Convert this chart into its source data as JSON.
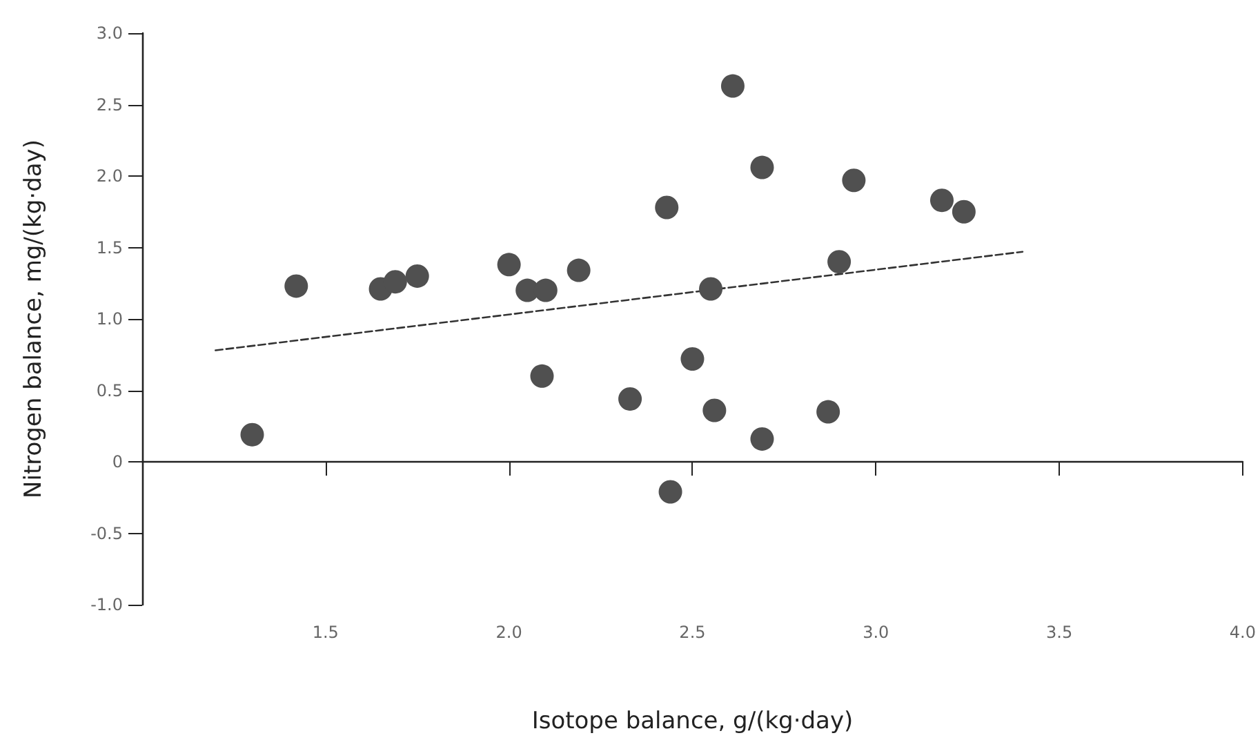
{
  "chart_data": {
    "type": "scatter",
    "xlabel": "Isotope balance, g/(kg·day)",
    "ylabel": "Nitrogen balance, mg/(kg·day)",
    "xlim": [
      1.0,
      4.0
    ],
    "xticks": [
      1.5,
      {
        "value": 2,
        "label": "2.0"
      },
      2.5,
      {
        "value": 3,
        "label": "3.0"
      },
      3.5,
      {
        "value": 4,
        "label": "4.0"
      }
    ],
    "ylim": [
      -1.0,
      3.0
    ],
    "yticks": [
      {
        "value": -1,
        "label": "-1.0"
      },
      -0.5,
      0,
      0.5,
      {
        "value": 1,
        "label": "1.0"
      },
      1.5,
      {
        "value": 2,
        "label": "2.0"
      },
      2.5,
      {
        "value": 3,
        "label": "3.0"
      }
    ],
    "series": [
      {
        "color": "#505050",
        "marker": "circle",
        "x": [
          1.3,
          1.42,
          1.65,
          1.69,
          1.75,
          2.0,
          2.05,
          2.1,
          2.09,
          2.19,
          2.61,
          2.69,
          2.94,
          2.43,
          3.18,
          3.24,
          2.9,
          2.55,
          2.5,
          2.33,
          2.56,
          2.87,
          2.69,
          2.44
        ],
        "values": [
          0.19,
          1.23,
          1.21,
          1.26,
          1.3,
          1.38,
          1.2,
          1.2,
          0.6,
          1.34,
          2.63,
          2.06,
          1.97,
          1.78,
          1.83,
          1.75,
          1.4,
          1.21,
          0.72,
          0.44,
          0.36,
          0.35,
          0.16,
          -0.21
        ]
      },
      {
        "type": "line",
        "color": "#333333",
        "marker": "none",
        "line_style": "dashed",
        "x": [
          1.2,
          3.4
        ],
        "values": [
          0.78,
          1.47
        ]
      }
    ]
  }
}
